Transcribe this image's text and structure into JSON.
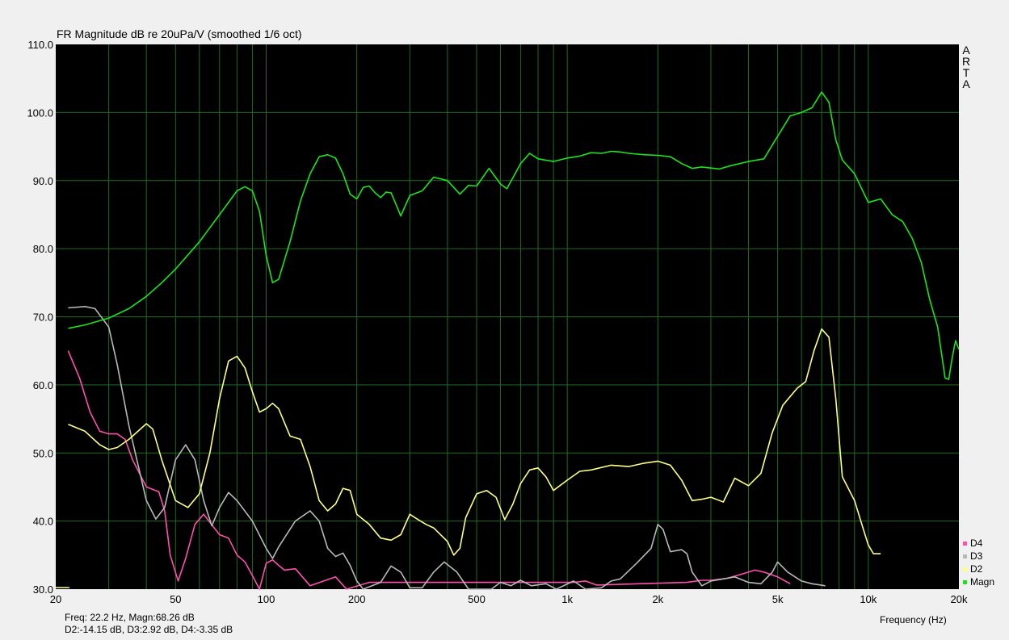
{
  "chart_data": {
    "type": "line",
    "title": "FR Magnitude dB re 20uPa/V (smoothed 1/6 oct)",
    "xlabel": "Frequency (Hz)",
    "ylabel": "",
    "xscale": "log",
    "xlim": [
      20,
      20000
    ],
    "ylim": [
      30,
      110
    ],
    "grid": true,
    "background": "#000000",
    "grid_color": "#1f6b1f",
    "y_ticks": [
      "30.0",
      "40.0",
      "50.0",
      "60.0",
      "70.0",
      "80.0",
      "90.0",
      "100.0",
      "110.0"
    ],
    "x_ticks": [
      {
        "value": 20,
        "label": "20"
      },
      {
        "value": 50,
        "label": "50"
      },
      {
        "value": 100,
        "label": "100"
      },
      {
        "value": 200,
        "label": "200"
      },
      {
        "value": 500,
        "label": "500"
      },
      {
        "value": 1000,
        "label": "1k"
      },
      {
        "value": 2000,
        "label": "2k"
      },
      {
        "value": 5000,
        "label": "5k"
      },
      {
        "value": 10000,
        "label": "10k"
      },
      {
        "value": 20000,
        "label": "20k"
      }
    ],
    "side_label": [
      "A",
      "R",
      "T",
      "A"
    ],
    "legend": [
      {
        "name": "D4",
        "color": "#ff4fae"
      },
      {
        "name": "D3",
        "color": "#b8b8b8"
      },
      {
        "name": "D2",
        "color": "#ffff80"
      },
      {
        "name": "Magn",
        "color": "#19e619"
      }
    ],
    "readout": [
      "Freq: 22.2 Hz, Magn:68.26 dB",
      "D2:-14.15 dB, D3:2.92 dB, D4:-3.35 dB"
    ],
    "series": [
      {
        "name": "Magn",
        "color": "#19e619",
        "points": [
          [
            22,
            68.3
          ],
          [
            25,
            68.8
          ],
          [
            30,
            69.8
          ],
          [
            35,
            71.2
          ],
          [
            40,
            73
          ],
          [
            45,
            75
          ],
          [
            50,
            77
          ],
          [
            60,
            81
          ],
          [
            70,
            85
          ],
          [
            80,
            88.5
          ],
          [
            85,
            89.1
          ],
          [
            90,
            88.5
          ],
          [
            95,
            85.5
          ],
          [
            100,
            79
          ],
          [
            105,
            75
          ],
          [
            110,
            75.5
          ],
          [
            120,
            81
          ],
          [
            130,
            87
          ],
          [
            140,
            91
          ],
          [
            150,
            93.5
          ],
          [
            160,
            93.8
          ],
          [
            170,
            93.3
          ],
          [
            180,
            91
          ],
          [
            190,
            88
          ],
          [
            200,
            87.3
          ],
          [
            210,
            89
          ],
          [
            220,
            89.2
          ],
          [
            230,
            88.2
          ],
          [
            240,
            87.5
          ],
          [
            250,
            88.3
          ],
          [
            260,
            88.2
          ],
          [
            270,
            86.5
          ],
          [
            280,
            84.8
          ],
          [
            300,
            87.8
          ],
          [
            330,
            88.5
          ],
          [
            360,
            90.5
          ],
          [
            400,
            90
          ],
          [
            440,
            88
          ],
          [
            470,
            89.3
          ],
          [
            500,
            89.2
          ],
          [
            550,
            91.8
          ],
          [
            600,
            89.5
          ],
          [
            630,
            88.8
          ],
          [
            700,
            92.5
          ],
          [
            750,
            94
          ],
          [
            800,
            93.2
          ],
          [
            900,
            92.8
          ],
          [
            1000,
            93.3
          ],
          [
            1100,
            93.6
          ],
          [
            1200,
            94.1
          ],
          [
            1300,
            94
          ],
          [
            1400,
            94.3
          ],
          [
            1500,
            94.2
          ],
          [
            1600,
            94
          ],
          [
            1800,
            93.8
          ],
          [
            2000,
            93.7
          ],
          [
            2200,
            93.5
          ],
          [
            2400,
            92.5
          ],
          [
            2600,
            91.8
          ],
          [
            2800,
            92
          ],
          [
            3200,
            91.7
          ],
          [
            3500,
            92.2
          ],
          [
            4000,
            92.8
          ],
          [
            4500,
            93.2
          ],
          [
            5000,
            96.5
          ],
          [
            5500,
            99.5
          ],
          [
            6000,
            100
          ],
          [
            6500,
            100.7
          ],
          [
            7000,
            103
          ],
          [
            7400,
            101.5
          ],
          [
            7800,
            96
          ],
          [
            8200,
            93
          ],
          [
            9000,
            91
          ],
          [
            10000,
            86.8
          ],
          [
            11000,
            87.3
          ],
          [
            12000,
            85
          ],
          [
            13000,
            84
          ],
          [
            14000,
            81.5
          ],
          [
            15000,
            78
          ],
          [
            16000,
            72.5
          ],
          [
            17000,
            68.5
          ],
          [
            18000,
            61
          ],
          [
            18500,
            60.8
          ],
          [
            19000,
            64
          ],
          [
            19500,
            66.5
          ],
          [
            20000,
            65.2
          ]
        ]
      },
      {
        "name": "D2",
        "color": "#ffff80",
        "points": [
          [
            22,
            54.2
          ],
          [
            25,
            53.2
          ],
          [
            28,
            51.2
          ],
          [
            30,
            50.5
          ],
          [
            32,
            50.8
          ],
          [
            35,
            52
          ],
          [
            40,
            54.3
          ],
          [
            42,
            53.5
          ],
          [
            45,
            49
          ],
          [
            50,
            43
          ],
          [
            55,
            42
          ],
          [
            60,
            44
          ],
          [
            65,
            50
          ],
          [
            70,
            58
          ],
          [
            75,
            63.5
          ],
          [
            80,
            64.2
          ],
          [
            85,
            62.5
          ],
          [
            90,
            59
          ],
          [
            95,
            56
          ],
          [
            100,
            56.5
          ],
          [
            105,
            57.3
          ],
          [
            110,
            56.5
          ],
          [
            120,
            52.5
          ],
          [
            130,
            52
          ],
          [
            140,
            48
          ],
          [
            150,
            43
          ],
          [
            160,
            41.5
          ],
          [
            170,
            42.5
          ],
          [
            180,
            44.8
          ],
          [
            190,
            44.5
          ],
          [
            200,
            41
          ],
          [
            220,
            39.5
          ],
          [
            240,
            37.5
          ],
          [
            260,
            37.2
          ],
          [
            280,
            38
          ],
          [
            300,
            41
          ],
          [
            320,
            40.2
          ],
          [
            340,
            39.5
          ],
          [
            360,
            39
          ],
          [
            400,
            37
          ],
          [
            420,
            35
          ],
          [
            440,
            36
          ],
          [
            460,
            40.5
          ],
          [
            500,
            44
          ],
          [
            540,
            44.5
          ],
          [
            580,
            43.5
          ],
          [
            620,
            40.2
          ],
          [
            660,
            42.5
          ],
          [
            700,
            45.5
          ],
          [
            750,
            47.5
          ],
          [
            800,
            47.8
          ],
          [
            850,
            46.5
          ],
          [
            900,
            44.5
          ],
          [
            1000,
            46
          ],
          [
            1100,
            47.3
          ],
          [
            1200,
            47.5
          ],
          [
            1400,
            48.2
          ],
          [
            1600,
            48
          ],
          [
            1800,
            48.5
          ],
          [
            2000,
            48.8
          ],
          [
            2200,
            48.2
          ],
          [
            2400,
            46
          ],
          [
            2600,
            43
          ],
          [
            2800,
            43.2
          ],
          [
            3000,
            43.5
          ],
          [
            3300,
            42.8
          ],
          [
            3600,
            46.3
          ],
          [
            4000,
            45.2
          ],
          [
            4400,
            47
          ],
          [
            4800,
            53
          ],
          [
            5200,
            57
          ],
          [
            5800,
            59.5
          ],
          [
            6200,
            60.5
          ],
          [
            6600,
            65
          ],
          [
            7000,
            68.2
          ],
          [
            7400,
            67
          ],
          [
            7800,
            58
          ],
          [
            8200,
            46.5
          ],
          [
            9000,
            43
          ],
          [
            9600,
            39
          ],
          [
            10000,
            36.5
          ],
          [
            10400,
            35.2
          ],
          [
            11000,
            35.2
          ]
        ]
      },
      {
        "name": "D3",
        "color": "#b8b8b8",
        "points": [
          [
            22,
            71.3
          ],
          [
            25,
            71.5
          ],
          [
            27,
            71.2
          ],
          [
            30,
            68.5
          ],
          [
            32,
            63
          ],
          [
            35,
            54
          ],
          [
            40,
            43
          ],
          [
            43,
            40.3
          ],
          [
            46,
            42
          ],
          [
            50,
            49
          ],
          [
            54,
            51.2
          ],
          [
            58,
            49
          ],
          [
            62,
            43
          ],
          [
            66,
            39.3
          ],
          [
            70,
            42
          ],
          [
            75,
            44.2
          ],
          [
            80,
            43
          ],
          [
            90,
            40
          ],
          [
            100,
            36
          ],
          [
            105,
            34.5
          ],
          [
            110,
            36.2
          ],
          [
            125,
            40
          ],
          [
            140,
            41.5
          ],
          [
            150,
            40
          ],
          [
            160,
            36
          ],
          [
            170,
            34.8
          ],
          [
            180,
            35.3
          ],
          [
            190,
            33.5
          ],
          [
            200,
            31.2
          ],
          [
            210,
            30
          ],
          [
            240,
            31
          ],
          [
            260,
            33.4
          ],
          [
            280,
            32.5
          ],
          [
            300,
            30.2
          ],
          [
            330,
            30.2
          ],
          [
            360,
            32.5
          ],
          [
            390,
            34
          ],
          [
            430,
            32.5
          ],
          [
            470,
            30
          ],
          [
            560,
            30
          ],
          [
            600,
            31
          ],
          [
            650,
            30.5
          ],
          [
            700,
            31.3
          ],
          [
            760,
            30.5
          ],
          [
            850,
            30.8
          ],
          [
            920,
            30
          ],
          [
            1050,
            31.2
          ],
          [
            1150,
            30
          ],
          [
            1300,
            30.2
          ],
          [
            1400,
            31.2
          ],
          [
            1500,
            31.5
          ],
          [
            1700,
            33.8
          ],
          [
            1900,
            36
          ],
          [
            2000,
            39.5
          ],
          [
            2080,
            38.8
          ],
          [
            2200,
            35.5
          ],
          [
            2400,
            35.8
          ],
          [
            2500,
            35.2
          ],
          [
            2600,
            32.5
          ],
          [
            2800,
            30.5
          ],
          [
            3000,
            31.2
          ],
          [
            3300,
            31.5
          ],
          [
            3600,
            31.8
          ],
          [
            4000,
            31
          ],
          [
            4400,
            30.8
          ],
          [
            4800,
            32.5
          ],
          [
            5000,
            34
          ],
          [
            5400,
            32.5
          ],
          [
            6000,
            31.2
          ],
          [
            6500,
            30.8
          ],
          [
            7200,
            30.5
          ]
        ]
      },
      {
        "name": "D4",
        "color": "#ff4fae",
        "points": [
          [
            22,
            65
          ],
          [
            24,
            61
          ],
          [
            26,
            56
          ],
          [
            28,
            53.2
          ],
          [
            30,
            52.8
          ],
          [
            32,
            52.8
          ],
          [
            34,
            52
          ],
          [
            36,
            49
          ],
          [
            40,
            45
          ],
          [
            44,
            44.3
          ],
          [
            46,
            41.5
          ],
          [
            48,
            35
          ],
          [
            51,
            31.2
          ],
          [
            54,
            34.5
          ],
          [
            58,
            39.5
          ],
          [
            62,
            41
          ],
          [
            65,
            39.8
          ],
          [
            70,
            38
          ],
          [
            75,
            37.5
          ],
          [
            80,
            35
          ],
          [
            85,
            34
          ],
          [
            90,
            32
          ],
          [
            95,
            30
          ],
          [
            100,
            33.8
          ],
          [
            105,
            34.3
          ],
          [
            110,
            33.5
          ],
          [
            115,
            32.8
          ],
          [
            125,
            33
          ],
          [
            140,
            30.5
          ],
          [
            170,
            31.8
          ],
          [
            185,
            30
          ],
          [
            220,
            31
          ],
          [
            1050,
            31
          ],
          [
            1150,
            31.2
          ],
          [
            1250,
            30.6
          ],
          [
            2500,
            31
          ],
          [
            2800,
            31.3
          ],
          [
            3000,
            31.3
          ],
          [
            3400,
            31.6
          ],
          [
            3800,
            32.2
          ],
          [
            4200,
            32.8
          ],
          [
            4500,
            32.5
          ],
          [
            5000,
            31.8
          ],
          [
            5500,
            30.8
          ]
        ]
      }
    ]
  }
}
